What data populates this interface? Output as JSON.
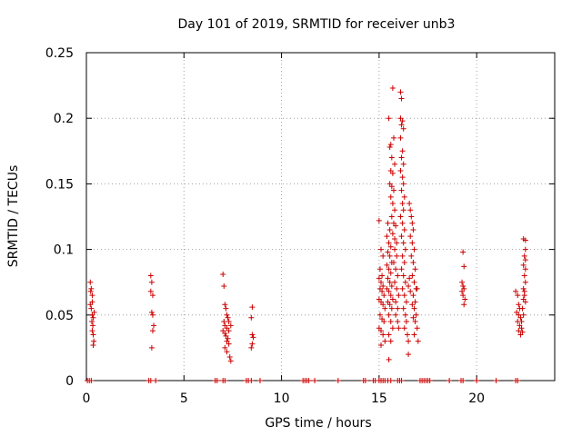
{
  "chart_data": {
    "type": "scatter",
    "title": "Day 101 of 2019, SRMTID for receiver unb3",
    "xlabel": "GPS time / hours",
    "ylabel": "SRMTID / TECUs",
    "xlim": [
      0,
      24
    ],
    "ylim": [
      0,
      0.25
    ],
    "xticks": [
      0,
      5,
      10,
      15,
      20
    ],
    "yticks": [
      0,
      0.05,
      0.1,
      0.15,
      0.2,
      0.25
    ],
    "xtick_labels": [
      "0",
      "5",
      "10",
      "15",
      "20"
    ],
    "ytick_labels": [
      "0",
      "0.05",
      "0.1",
      "0.15",
      "0.2",
      "0.25"
    ],
    "grid": true,
    "marker": "+",
    "color": "#cc0000",
    "series": [
      {
        "name": "SRMTID",
        "points": [
          [
            0.2,
            0.075
          ],
          [
            0.25,
            0.07
          ],
          [
            0.3,
            0.065
          ],
          [
            0.2,
            0.058
          ],
          [
            0.25,
            0.055
          ],
          [
            0.3,
            0.05
          ],
          [
            0.35,
            0.048
          ],
          [
            0.28,
            0.045
          ],
          [
            0.33,
            0.042
          ],
          [
            0.3,
            0.038
          ],
          [
            0.35,
            0.035
          ],
          [
            0.38,
            0.03
          ],
          [
            0.35,
            0.027
          ],
          [
            0.3,
            0.06
          ],
          [
            0.4,
            0.052
          ],
          [
            0.22,
            0.068
          ],
          [
            3.3,
            0.08
          ],
          [
            3.35,
            0.075
          ],
          [
            3.3,
            0.068
          ],
          [
            3.4,
            0.065
          ],
          [
            3.35,
            0.052
          ],
          [
            3.4,
            0.05
          ],
          [
            3.45,
            0.042
          ],
          [
            3.4,
            0.038
          ],
          [
            3.35,
            0.025
          ],
          [
            7.0,
            0.081
          ],
          [
            7.05,
            0.072
          ],
          [
            7.1,
            0.058
          ],
          [
            7.15,
            0.055
          ],
          [
            7.2,
            0.05
          ],
          [
            7.25,
            0.048
          ],
          [
            7.05,
            0.045
          ],
          [
            7.1,
            0.042
          ],
          [
            7.2,
            0.04
          ],
          [
            7.3,
            0.038
          ],
          [
            7.1,
            0.036
          ],
          [
            7.15,
            0.034
          ],
          [
            7.25,
            0.032
          ],
          [
            7.2,
            0.03
          ],
          [
            7.3,
            0.028
          ],
          [
            7.1,
            0.025
          ],
          [
            7.2,
            0.022
          ],
          [
            7.35,
            0.018
          ],
          [
            7.4,
            0.015
          ],
          [
            7.3,
            0.045
          ],
          [
            7.0,
            0.038
          ],
          [
            7.4,
            0.042
          ],
          [
            8.5,
            0.056
          ],
          [
            8.45,
            0.048
          ],
          [
            8.5,
            0.035
          ],
          [
            8.55,
            0.033
          ],
          [
            8.5,
            0.028
          ],
          [
            8.45,
            0.025
          ],
          [
            15.0,
            0.122
          ],
          [
            15.1,
            0.1
          ],
          [
            15.2,
            0.095
          ],
          [
            15.05,
            0.085
          ],
          [
            15.15,
            0.08
          ],
          [
            15.0,
            0.078
          ],
          [
            15.1,
            0.075
          ],
          [
            15.2,
            0.072
          ],
          [
            15.05,
            0.07
          ],
          [
            15.15,
            0.068
          ],
          [
            15.25,
            0.065
          ],
          [
            15.0,
            0.062
          ],
          [
            15.1,
            0.06
          ],
          [
            15.2,
            0.058
          ],
          [
            15.3,
            0.055
          ],
          [
            15.05,
            0.05
          ],
          [
            15.15,
            0.047
          ],
          [
            15.25,
            0.045
          ],
          [
            15.0,
            0.04
          ],
          [
            15.1,
            0.038
          ],
          [
            15.2,
            0.035
          ],
          [
            15.3,
            0.03
          ],
          [
            15.1,
            0.027
          ],
          [
            15.4,
            0.11
          ],
          [
            15.5,
            0.105
          ],
          [
            15.6,
            0.102
          ],
          [
            15.45,
            0.098
          ],
          [
            15.55,
            0.095
          ],
          [
            15.65,
            0.09
          ],
          [
            15.4,
            0.088
          ],
          [
            15.5,
            0.085
          ],
          [
            15.6,
            0.082
          ],
          [
            15.45,
            0.078
          ],
          [
            15.55,
            0.075
          ],
          [
            15.65,
            0.072
          ],
          [
            15.4,
            0.07
          ],
          [
            15.5,
            0.068
          ],
          [
            15.6,
            0.065
          ],
          [
            15.7,
            0.062
          ],
          [
            15.45,
            0.06
          ],
          [
            15.55,
            0.058
          ],
          [
            15.65,
            0.055
          ],
          [
            15.5,
            0.05
          ],
          [
            15.6,
            0.045
          ],
          [
            15.7,
            0.04
          ],
          [
            15.5,
            0.035
          ],
          [
            15.6,
            0.03
          ],
          [
            15.5,
            0.016
          ],
          [
            15.45,
            0.12
          ],
          [
            15.55,
            0.115
          ],
          [
            15.5,
            0.2
          ],
          [
            15.6,
            0.18
          ],
          [
            15.55,
            0.178
          ],
          [
            15.65,
            0.17
          ],
          [
            15.6,
            0.16
          ],
          [
            15.7,
            0.158
          ],
          [
            15.55,
            0.15
          ],
          [
            15.65,
            0.148
          ],
          [
            15.75,
            0.145
          ],
          [
            15.6,
            0.14
          ],
          [
            15.7,
            0.135
          ],
          [
            15.8,
            0.13
          ],
          [
            15.65,
            0.125
          ],
          [
            15.75,
            0.12
          ],
          [
            15.85,
            0.118
          ],
          [
            15.7,
            0.112
          ],
          [
            15.8,
            0.108
          ],
          [
            15.9,
            0.105
          ],
          [
            15.8,
            0.1
          ],
          [
            15.9,
            0.095
          ],
          [
            15.75,
            0.09
          ],
          [
            15.85,
            0.085
          ],
          [
            15.95,
            0.08
          ],
          [
            15.8,
            0.075
          ],
          [
            15.9,
            0.07
          ],
          [
            16.0,
            0.065
          ],
          [
            15.85,
            0.06
          ],
          [
            15.95,
            0.055
          ],
          [
            15.85,
            0.05
          ],
          [
            15.95,
            0.045
          ],
          [
            15.7,
            0.223
          ],
          [
            15.75,
            0.185
          ],
          [
            15.8,
            0.165
          ],
          [
            16.0,
            0.04
          ],
          [
            16.1,
            0.22
          ],
          [
            16.15,
            0.215
          ],
          [
            16.1,
            0.2
          ],
          [
            16.2,
            0.198
          ],
          [
            16.15,
            0.195
          ],
          [
            16.25,
            0.192
          ],
          [
            16.1,
            0.185
          ],
          [
            16.2,
            0.175
          ],
          [
            16.15,
            0.17
          ],
          [
            16.25,
            0.165
          ],
          [
            16.1,
            0.16
          ],
          [
            16.2,
            0.155
          ],
          [
            16.25,
            0.15
          ],
          [
            16.15,
            0.145
          ],
          [
            16.3,
            0.14
          ],
          [
            16.2,
            0.135
          ],
          [
            16.25,
            0.13
          ],
          [
            16.1,
            0.125
          ],
          [
            16.2,
            0.12
          ],
          [
            16.3,
            0.115
          ],
          [
            16.15,
            0.11
          ],
          [
            16.25,
            0.105
          ],
          [
            16.35,
            0.1
          ],
          [
            16.2,
            0.095
          ],
          [
            16.3,
            0.09
          ],
          [
            16.15,
            0.085
          ],
          [
            16.25,
            0.08
          ],
          [
            16.35,
            0.075
          ],
          [
            16.2,
            0.07
          ],
          [
            16.3,
            0.065
          ],
          [
            16.4,
            0.06
          ],
          [
            16.25,
            0.055
          ],
          [
            16.35,
            0.05
          ],
          [
            16.4,
            0.045
          ],
          [
            16.3,
            0.04
          ],
          [
            16.45,
            0.035
          ],
          [
            16.5,
            0.03
          ],
          [
            16.5,
            0.02
          ],
          [
            16.55,
            0.135
          ],
          [
            16.6,
            0.13
          ],
          [
            16.65,
            0.125
          ],
          [
            16.7,
            0.12
          ],
          [
            16.75,
            0.115
          ],
          [
            16.6,
            0.11
          ],
          [
            16.7,
            0.105
          ],
          [
            16.8,
            0.1
          ],
          [
            16.65,
            0.095
          ],
          [
            16.75,
            0.09
          ],
          [
            16.85,
            0.085
          ],
          [
            16.7,
            0.08
          ],
          [
            16.8,
            0.075
          ],
          [
            16.9,
            0.07
          ],
          [
            16.6,
            0.068
          ],
          [
            16.75,
            0.065
          ],
          [
            16.85,
            0.06
          ],
          [
            16.7,
            0.058
          ],
          [
            16.8,
            0.055
          ],
          [
            16.9,
            0.05
          ],
          [
            16.75,
            0.048
          ],
          [
            16.85,
            0.045
          ],
          [
            16.95,
            0.04
          ],
          [
            16.8,
            0.035
          ],
          [
            17.0,
            0.03
          ],
          [
            16.5,
            0.072
          ],
          [
            16.55,
            0.078
          ],
          [
            16.95,
            0.07
          ],
          [
            19.3,
            0.098
          ],
          [
            19.35,
            0.087
          ],
          [
            19.25,
            0.075
          ],
          [
            19.3,
            0.072
          ],
          [
            19.35,
            0.07
          ],
          [
            19.25,
            0.068
          ],
          [
            19.3,
            0.065
          ],
          [
            19.4,
            0.062
          ],
          [
            19.35,
            0.058
          ],
          [
            22.0,
            0.068
          ],
          [
            22.1,
            0.065
          ],
          [
            22.15,
            0.058
          ],
          [
            22.2,
            0.055
          ],
          [
            22.05,
            0.052
          ],
          [
            22.15,
            0.05
          ],
          [
            22.25,
            0.048
          ],
          [
            22.1,
            0.045
          ],
          [
            22.2,
            0.042
          ],
          [
            22.3,
            0.04
          ],
          [
            22.15,
            0.038
          ],
          [
            22.25,
            0.035
          ],
          [
            22.35,
            0.037
          ],
          [
            22.3,
            0.045
          ],
          [
            22.4,
            0.05
          ],
          [
            22.35,
            0.055
          ],
          [
            22.4,
            0.062
          ],
          [
            22.45,
            0.065
          ],
          [
            22.4,
            0.07
          ],
          [
            22.5,
            0.075
          ],
          [
            22.45,
            0.08
          ],
          [
            22.5,
            0.085
          ],
          [
            22.4,
            0.088
          ],
          [
            22.5,
            0.092
          ],
          [
            22.45,
            0.095
          ],
          [
            22.5,
            0.1
          ],
          [
            22.4,
            0.108
          ],
          [
            22.5,
            0.107
          ],
          [
            22.45,
            0.068
          ],
          [
            22.5,
            0.06
          ]
        ]
      }
    ],
    "zero_line_points": [
      0.05,
      0.15,
      0.25,
      3.2,
      3.3,
      3.55,
      6.6,
      6.7,
      7.0,
      7.1,
      8.2,
      8.3,
      8.45,
      8.9,
      11.1,
      11.2,
      11.3,
      11.4,
      11.7,
      12.9,
      14.2,
      14.3,
      14.7,
      14.8,
      15.0,
      15.1,
      15.2,
      15.3,
      15.45,
      15.6,
      15.95,
      16.05,
      16.15,
      17.1,
      17.2,
      17.3,
      17.4,
      17.5,
      17.6,
      18.6,
      19.2,
      19.3,
      20.0,
      21.0,
      22.0,
      22.1
    ]
  }
}
